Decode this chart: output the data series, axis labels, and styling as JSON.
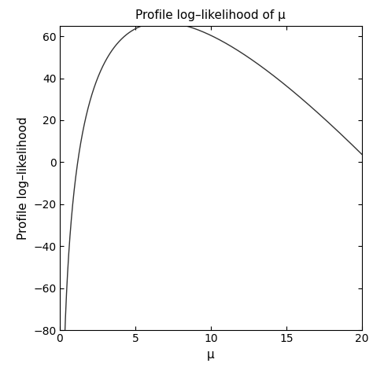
{
  "title": "Profile log–likelihood of μ",
  "xlabel": "μ",
  "ylabel": "Profile log–likelihood",
  "xlim": [
    0,
    20
  ],
  "ylim": [
    -80,
    65
  ],
  "x_ticks": [
    0,
    5,
    10,
    15,
    20
  ],
  "y_ticks": [
    -80,
    -60,
    -40,
    -20,
    0,
    20,
    40,
    60
  ],
  "line_color": "#333333",
  "line_width": 1.0,
  "background_color": "#ffffff",
  "A": 72.7,
  "B": 10.7,
  "x_start": 0.001,
  "x_end": 20.0,
  "n_points": 2000,
  "figsize": [
    4.74,
    4.67
  ],
  "dpi": 100,
  "title_fontsize": 11,
  "axis_label_fontsize": 11,
  "tick_fontsize": 10
}
